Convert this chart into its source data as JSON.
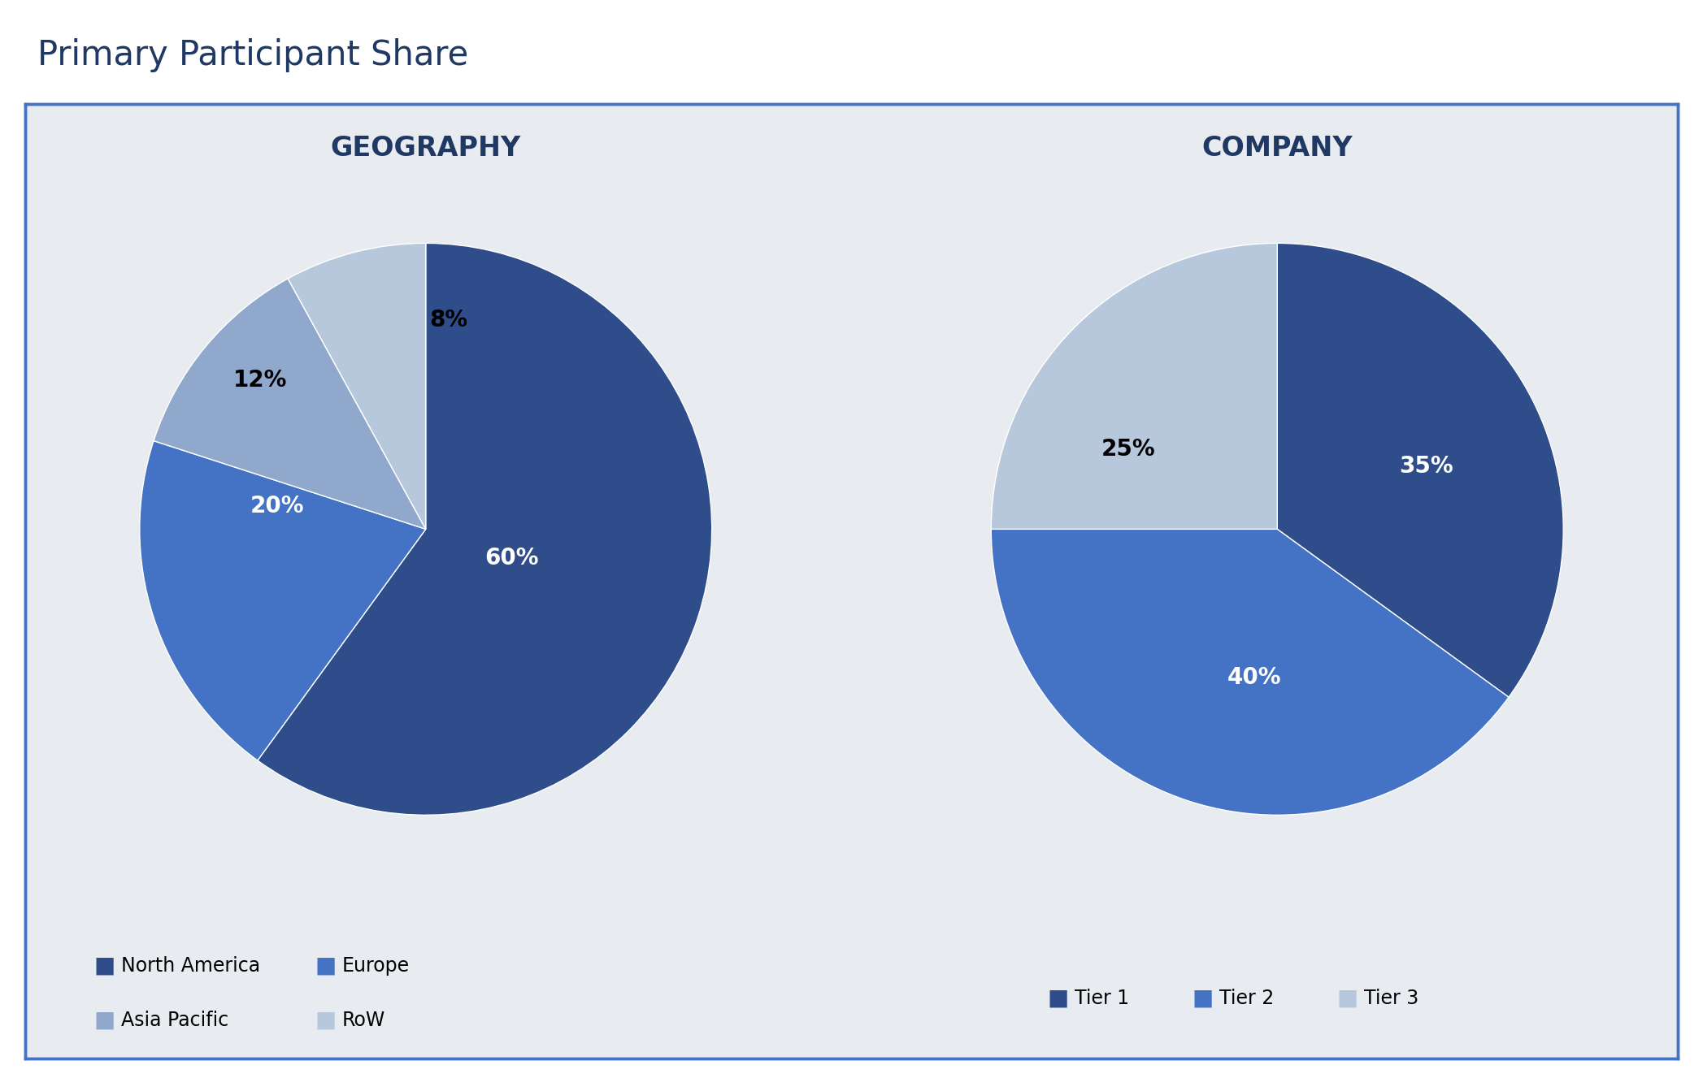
{
  "title": "Primary Participant Share",
  "title_color": "#1F3864",
  "title_fontsize": 30,
  "background_color": "#E8ECF0",
  "outer_background": "#FFFFFF",
  "border_color": "#4472C4",
  "geo_title": "GEOGRAPHY",
  "company_title": "COMPANY",
  "subtitle_fontsize": 24,
  "subtitle_color": "#1F3864",
  "geo_values": [
    60,
    20,
    12,
    8
  ],
  "geo_labels": [
    "60%",
    "20%",
    "12%",
    "8%"
  ],
  "geo_colors": [
    "#2E4D8A",
    "#4472C4",
    "#8FA8CC",
    "#B8C8DC"
  ],
  "geo_label_colors": [
    "white",
    "white",
    "black",
    "black"
  ],
  "geo_legend": [
    "North America",
    "Europe",
    "Asia Pacific",
    "RoW"
  ],
  "geo_startangle": 72,
  "company_values": [
    35,
    40,
    25
  ],
  "company_labels": [
    "35%",
    "40%",
    "25%"
  ],
  "company_colors": [
    "#2E4D8A",
    "#4472C4",
    "#B8C8DC"
  ],
  "company_label_colors": [
    "white",
    "white",
    "black"
  ],
  "company_legend": [
    "Tier 1",
    "Tier 2",
    "Tier 3"
  ],
  "company_startangle": 90,
  "label_fontsize": 20,
  "legend_fontsize": 17
}
